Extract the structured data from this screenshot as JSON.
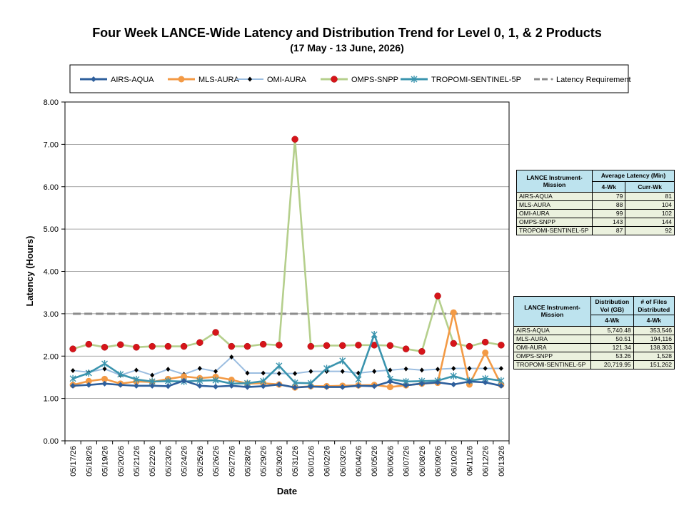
{
  "chart_data": {
    "type": "line",
    "title": "Four Week LANCE-Wide Latency and Distribution Trend for Level 0, 1, & 2 Products",
    "subtitle": "(17 May   - 13 June, 2026)",
    "xlabel": "Date",
    "ylabel": "Latency (Hours)",
    "ylim": [
      0,
      8
    ],
    "yticks": [
      "0.00",
      "1.00",
      "2.00",
      "3.00",
      "4.00",
      "5.00",
      "6.00",
      "7.00",
      "8.00"
    ],
    "grid": true,
    "legend_position": "top",
    "categories": [
      "05/17/26",
      "05/18/26",
      "05/19/26",
      "05/20/26",
      "05/21/26",
      "05/22/26",
      "05/23/26",
      "05/24/26",
      "05/25/26",
      "05/26/26",
      "05/27/26",
      "05/28/26",
      "05/29/26",
      "05/30/26",
      "05/31/26",
      "06/01/26",
      "06/02/26",
      "06/03/26",
      "06/04/26",
      "06/05/26",
      "06/06/26",
      "06/07/26",
      "06/08/26",
      "06/09/26",
      "06/10/26",
      "06/11/26",
      "06/12/26",
      "06/13/26"
    ],
    "series": [
      {
        "name": "AIRS-AQUA",
        "color": "#2e5f9c",
        "marker": "diamond",
        "values": [
          1.3,
          1.32,
          1.35,
          1.32,
          1.3,
          1.3,
          1.29,
          1.42,
          1.3,
          1.28,
          1.3,
          1.27,
          1.29,
          1.33,
          1.26,
          1.28,
          1.27,
          1.27,
          1.3,
          1.29,
          1.4,
          1.31,
          1.35,
          1.38,
          1.33,
          1.4,
          1.38,
          1.3
        ]
      },
      {
        "name": "MLS-AURA",
        "color": "#f39a45",
        "marker": "circle",
        "values": [
          1.32,
          1.41,
          1.46,
          1.35,
          1.4,
          1.39,
          1.46,
          1.52,
          1.48,
          1.51,
          1.44,
          1.35,
          1.36,
          1.33,
          1.26,
          1.29,
          1.29,
          1.3,
          1.31,
          1.32,
          1.27,
          1.31,
          1.35,
          1.37,
          3.03,
          1.33,
          2.08,
          1.32
        ]
      },
      {
        "name": "OMI-AURA",
        "color": "#9bbde0",
        "marker": "smalldiamond",
        "values": [
          1.66,
          1.62,
          1.7,
          1.55,
          1.67,
          1.55,
          1.69,
          1.57,
          1.71,
          1.64,
          1.98,
          1.6,
          1.6,
          1.59,
          1.59,
          1.64,
          1.64,
          1.64,
          1.6,
          1.64,
          1.67,
          1.7,
          1.67,
          1.69,
          1.71,
          1.71,
          1.71,
          1.71
        ]
      },
      {
        "name": "OMPS-SNPP",
        "color": "#b5cf8c",
        "marker": "reddot",
        "values": [
          2.17,
          2.28,
          2.21,
          2.27,
          2.21,
          2.23,
          2.23,
          2.23,
          2.32,
          2.56,
          2.23,
          2.23,
          2.28,
          2.26,
          7.12,
          2.23,
          2.25,
          2.25,
          2.26,
          2.26,
          2.25,
          2.17,
          2.11,
          3.42,
          2.3,
          2.23,
          2.33,
          2.26
        ]
      },
      {
        "name": "TROPOMI-SENTINEL-5P",
        "color": "#3a94ae",
        "marker": "star",
        "values": [
          1.47,
          1.6,
          1.82,
          1.57,
          1.45,
          1.4,
          1.41,
          1.4,
          1.42,
          1.43,
          1.35,
          1.36,
          1.41,
          1.77,
          1.37,
          1.36,
          1.71,
          1.89,
          1.45,
          2.51,
          1.46,
          1.4,
          1.41,
          1.42,
          1.53,
          1.42,
          1.47,
          1.42
        ]
      },
      {
        "name": "Latency Requirement",
        "color": "#8c8c8c",
        "marker": "dash",
        "values": [
          3,
          3,
          3,
          3,
          3,
          3,
          3,
          3,
          3,
          3,
          3,
          3,
          3,
          3,
          3,
          3,
          3,
          3,
          3,
          3,
          3,
          3,
          3,
          3,
          3,
          3,
          3,
          3
        ]
      }
    ]
  },
  "latency_table": {
    "col1_header": "LANCE Instrument-Mission",
    "col2_header": "Average Latency (Min)",
    "sub_4wk": "4-Wk",
    "sub_currwk": "Curr-Wk",
    "rows": [
      {
        "name": "AIRS-AQUA",
        "four_wk": "79",
        "curr_wk": "81"
      },
      {
        "name": "MLS-AURA",
        "four_wk": "88",
        "curr_wk": "104"
      },
      {
        "name": "OMI-AURA",
        "four_wk": "99",
        "curr_wk": "102"
      },
      {
        "name": "OMPS-SNPP",
        "four_wk": "143",
        "curr_wk": "144"
      },
      {
        "name": "TROPOMI-SENTINEL-5P",
        "four_wk": "87",
        "curr_wk": "92"
      }
    ]
  },
  "distribution_table": {
    "col1_header": "LANCE Instrument-Mission",
    "col2_header": "Distribution Vol (GB)",
    "col3_header": "# of Files Distributed",
    "sub_a": "4-Wk",
    "sub_b": "4-Wk",
    "rows": [
      {
        "name": "AIRS-AQUA",
        "vol": "5,740.48",
        "files": "353,546"
      },
      {
        "name": "MLS-AURA",
        "vol": "50.51",
        "files": "194,116"
      },
      {
        "name": "OMI-AURA",
        "vol": "121.34",
        "files": "138,303"
      },
      {
        "name": "OMPS-SNPP",
        "vol": "53.26",
        "files": "1,528"
      },
      {
        "name": "TROPOMI-SENTINEL-5P",
        "vol": "20,719.95",
        "files": "151,262"
      }
    ]
  }
}
